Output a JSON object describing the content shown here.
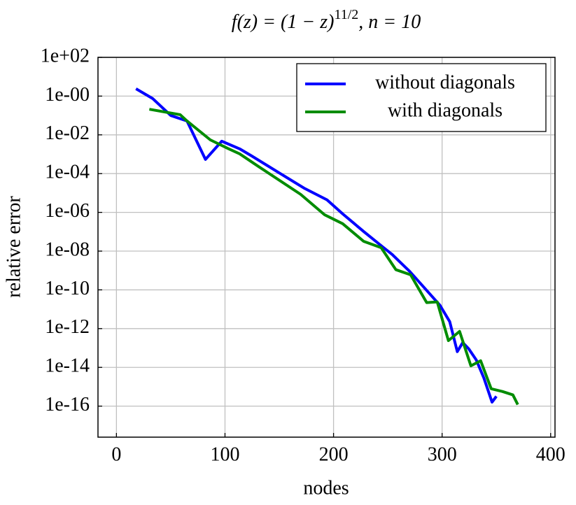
{
  "chart_data": {
    "type": "line",
    "title": {
      "base": "f(z) = (1 − z)",
      "exponent": "11/2",
      "rest": ", n = 10"
    },
    "xlabel": "nodes",
    "ylabel": "relative error",
    "yscale": "log",
    "grid": true,
    "legend": "upper right",
    "xlim": [
      -17,
      404
    ],
    "xticks": [
      0,
      100,
      200,
      300,
      400
    ],
    "ylim": [
      2.5e-18,
      100
    ],
    "yticks": [
      {
        "value": 100,
        "label": "1e+02"
      },
      {
        "value": 1,
        "label": "1e-00"
      },
      {
        "value": 0.01,
        "label": "1e-02"
      },
      {
        "value": 0.0001,
        "label": "1e-04"
      },
      {
        "value": 1e-06,
        "label": "1e-06"
      },
      {
        "value": 1e-08,
        "label": "1e-08"
      },
      {
        "value": 1e-10,
        "label": "1e-10"
      },
      {
        "value": 1e-12,
        "label": "1e-12"
      },
      {
        "value": 1e-14,
        "label": "1e-14"
      },
      {
        "value": 1e-16,
        "label": "1e-16"
      }
    ],
    "series": [
      {
        "name": "without diagonals",
        "color": "#0000ff",
        "x": [
          18,
          33.5,
          50,
          65,
          82,
          97,
          113.5,
          124.5,
          151,
          173.5,
          194,
          208.5,
          228,
          245,
          254,
          270,
          285,
          298,
          307,
          314,
          319,
          324.5,
          331.5,
          338.5,
          346,
          350
        ],
        "values": [
          2.4,
          0.74,
          0.1,
          0.052,
          0.00054,
          0.0047,
          0.0019,
          0.00082,
          0.0001,
          1.7e-05,
          4.4e-06,
          8.3e-07,
          1e-07,
          1.7e-08,
          6.7e-09,
          9.1e-10,
          1.05e-10,
          1.6e-11,
          2.3e-12,
          6.5e-14,
          1.9e-13,
          9.1e-14,
          2.4e-14,
          2.8e-15,
          1.6e-16,
          3.2e-16
        ]
      },
      {
        "name": "with diagonals",
        "color": "#008c00",
        "x": [
          30.3,
          58.7,
          65,
          86.5,
          102.6,
          113.5,
          131,
          169.7,
          191.6,
          208.4,
          227.7,
          243.9,
          257.4,
          271,
          285.8,
          295.5,
          305.8,
          316.1,
          326.5,
          335.5,
          345.2,
          355.5,
          365.2,
          369.7
        ],
        "values": [
          0.21,
          0.11,
          0.052,
          0.0055,
          0.002,
          0.00105,
          0.00023,
          8.5e-06,
          7.6e-07,
          2.6e-07,
          3.2e-08,
          1.5e-08,
          1.1e-09,
          6e-10,
          2.2e-11,
          2.4e-11,
          2.4e-13,
          7.2e-13,
          1.2e-14,
          2.2e-14,
          7.9e-16,
          5.7e-16,
          3.8e-16,
          1.2e-16
        ]
      }
    ]
  }
}
